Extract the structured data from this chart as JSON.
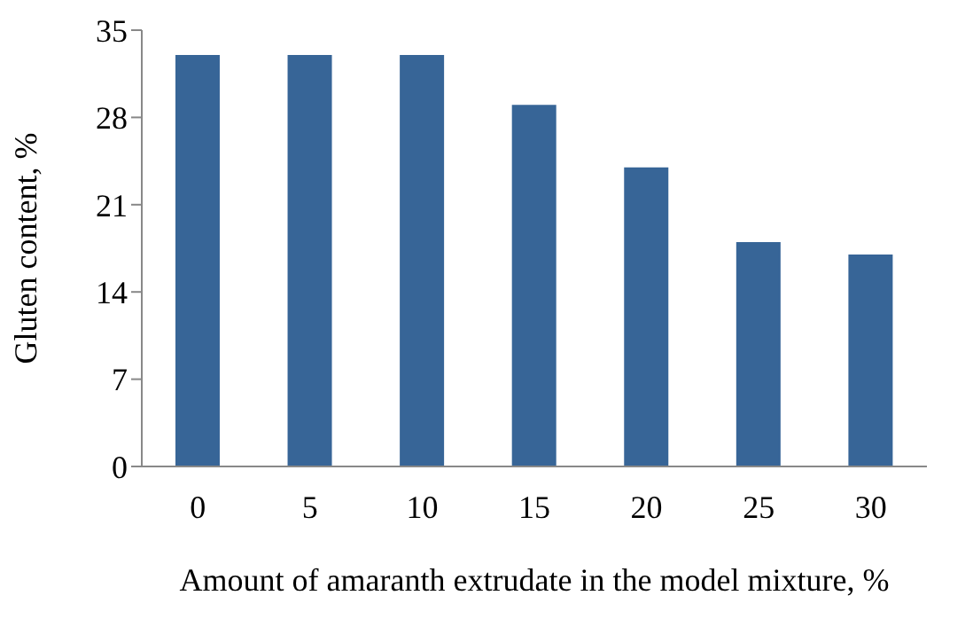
{
  "chart_data": {
    "type": "bar",
    "xlabel": "Amount of amaranth extrudate in the model mixture, %",
    "ylabel": "Gluten content, %",
    "categories": [
      "0",
      "5",
      "10",
      "15",
      "20",
      "25",
      "30"
    ],
    "values": [
      33,
      33,
      33,
      29,
      24,
      18,
      17
    ],
    "color": "#376597",
    "ylim": [
      0,
      35
    ],
    "yticks": [
      0,
      7,
      14,
      21,
      28,
      35
    ],
    "grid": false,
    "legend": false
  }
}
